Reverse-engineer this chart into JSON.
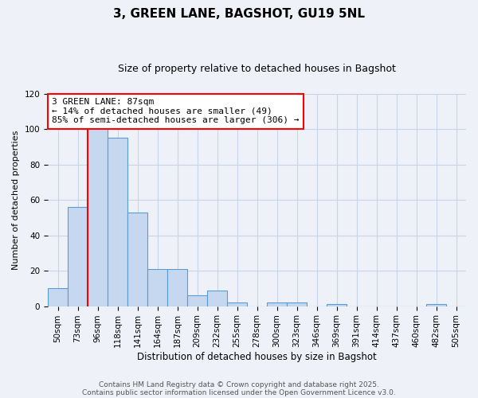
{
  "title": "3, GREEN LANE, BAGSHOT, GU19 5NL",
  "subtitle": "Size of property relative to detached houses in Bagshot",
  "xlabel": "Distribution of detached houses by size in Bagshot",
  "ylabel": "Number of detached properties",
  "bar_labels": [
    "50sqm",
    "73sqm",
    "96sqm",
    "118sqm",
    "141sqm",
    "164sqm",
    "187sqm",
    "209sqm",
    "232sqm",
    "255sqm",
    "278sqm",
    "300sqm",
    "323sqm",
    "346sqm",
    "369sqm",
    "391sqm",
    "414sqm",
    "437sqm",
    "460sqm",
    "482sqm",
    "505sqm"
  ],
  "bar_values": [
    10,
    56,
    101,
    95,
    53,
    21,
    21,
    6,
    9,
    2,
    0,
    2,
    2,
    0,
    1,
    0,
    0,
    0,
    0,
    1,
    0
  ],
  "bar_color": "#c5d8f0",
  "bar_edge_color": "#5b9bd5",
  "vline_x": 1.5,
  "vline_color": "red",
  "ylim": [
    0,
    120
  ],
  "yticks": [
    0,
    20,
    40,
    60,
    80,
    100,
    120
  ],
  "annotation_title": "3 GREEN LANE: 87sqm",
  "annotation_line1": "← 14% of detached houses are smaller (49)",
  "annotation_line2": "85% of semi-detached houses are larger (306) →",
  "footer1": "Contains HM Land Registry data © Crown copyright and database right 2025.",
  "footer2": "Contains public sector information licensed under the Open Government Licence v3.0.",
  "background_color": "#eef2f8",
  "grid_color": "#c8d4e8",
  "title_fontsize": 11,
  "subtitle_fontsize": 9,
  "annotation_fontsize": 8,
  "footer_fontsize": 6.5,
  "xlabel_fontsize": 8.5,
  "ylabel_fontsize": 8,
  "tick_fontsize": 7.5
}
